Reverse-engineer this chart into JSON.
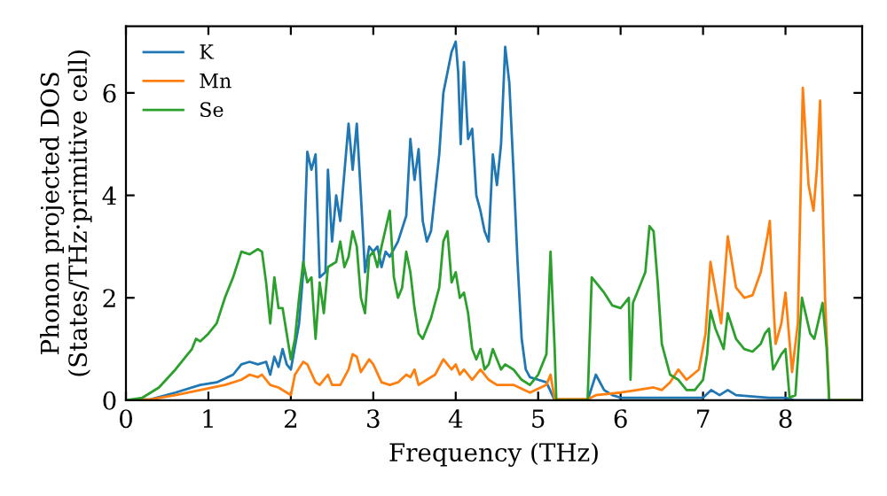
{
  "chart_data": {
    "type": "line",
    "xlabel": "Frequency (THz)",
    "ylabel": "Phonon projected DOS\n(States/THz·primitive cell)",
    "xlim": [
      0,
      8.93
    ],
    "ylim": [
      0,
      7.3
    ],
    "xticks": [
      0,
      1,
      2,
      3,
      4,
      5,
      6,
      7,
      8
    ],
    "yticks": [
      0,
      2,
      4,
      6
    ],
    "legend": "top left",
    "grid": false,
    "marker": "none",
    "line_style": "solid",
    "series": [
      {
        "name": "K",
        "color": "#1f77b4",
        "x": [
          0,
          0.3,
          0.6,
          0.9,
          1.1,
          1.3,
          1.4,
          1.5,
          1.6,
          1.7,
          1.75,
          1.8,
          1.85,
          1.9,
          1.95,
          2.0,
          2.1,
          2.15,
          2.2,
          2.25,
          2.3,
          2.35,
          2.42,
          2.45,
          2.5,
          2.55,
          2.6,
          2.7,
          2.75,
          2.8,
          2.85,
          2.9,
          2.95,
          3.0,
          3.05,
          3.1,
          3.15,
          3.2,
          3.3,
          3.4,
          3.45,
          3.5,
          3.55,
          3.6,
          3.65,
          3.7,
          3.8,
          3.85,
          3.95,
          4.0,
          4.03,
          4.06,
          4.1,
          4.15,
          4.2,
          4.25,
          4.3,
          4.35,
          4.4,
          4.45,
          4.5,
          4.55,
          4.6,
          4.65,
          4.7,
          4.75,
          4.8,
          4.85,
          4.9,
          5.0,
          5.1,
          5.2,
          5.6,
          5.7,
          5.8,
          5.9,
          6.0,
          6.5,
          7.0,
          7.1,
          7.2,
          7.3,
          7.4,
          7.8,
          8.0,
          8.1,
          8.93
        ],
        "values": [
          0,
          0.02,
          0.15,
          0.3,
          0.35,
          0.5,
          0.7,
          0.75,
          0.7,
          0.75,
          0.5,
          0.85,
          0.65,
          1.0,
          0.7,
          0.6,
          1.5,
          2.5,
          4.85,
          4.5,
          4.8,
          2.4,
          2.5,
          4.5,
          3.1,
          4.0,
          3.5,
          5.4,
          4.5,
          5.4,
          4.0,
          2.5,
          3.0,
          2.9,
          3.0,
          2.6,
          2.9,
          2.8,
          3.1,
          3.6,
          5.1,
          4.3,
          4.9,
          3.5,
          3.1,
          3.3,
          4.8,
          6.0,
          6.8,
          7.0,
          6.4,
          5.0,
          6.6,
          5.1,
          5.3,
          4.0,
          3.7,
          3.3,
          3.1,
          4.8,
          4.2,
          5.0,
          6.9,
          6.2,
          4.5,
          2.7,
          1.2,
          0.6,
          0.45,
          0.4,
          0.35,
          0,
          0,
          0.5,
          0.2,
          0.1,
          0.05,
          0.05,
          0.05,
          0.2,
          0.1,
          0.2,
          0.1,
          0.05,
          0.05,
          0,
          0
        ]
      },
      {
        "name": "Mn",
        "color": "#ff7f0e",
        "x": [
          0,
          0.3,
          0.6,
          0.9,
          1.2,
          1.4,
          1.5,
          1.6,
          1.65,
          1.75,
          1.85,
          2.0,
          2.05,
          2.15,
          2.2,
          2.3,
          2.35,
          2.45,
          2.5,
          2.6,
          2.7,
          2.75,
          2.8,
          2.85,
          2.95,
          3.0,
          3.1,
          3.2,
          3.3,
          3.4,
          3.45,
          3.5,
          3.55,
          3.65,
          3.75,
          3.85,
          3.9,
          3.95,
          4.0,
          4.05,
          4.1,
          4.2,
          4.3,
          4.4,
          4.5,
          4.7,
          4.9,
          5.1,
          5.15,
          5.2,
          5.6,
          5.7,
          6.0,
          6.2,
          6.4,
          6.5,
          6.6,
          6.7,
          6.8,
          6.95,
          7.03,
          7.09,
          7.22,
          7.3,
          7.4,
          7.5,
          7.6,
          7.7,
          7.78,
          7.81,
          7.85,
          7.88,
          7.95,
          8.0,
          8.08,
          8.15,
          8.21,
          8.28,
          8.34,
          8.38,
          8.42,
          8.48,
          8.53,
          8.93
        ],
        "values": [
          0,
          0.02,
          0.1,
          0.2,
          0.3,
          0.4,
          0.5,
          0.45,
          0.5,
          0.3,
          0.25,
          0.1,
          0.5,
          0.75,
          0.7,
          0.35,
          0.3,
          0.5,
          0.3,
          0.3,
          0.6,
          0.9,
          0.85,
          0.55,
          0.8,
          0.7,
          0.35,
          0.3,
          0.35,
          0.5,
          0.45,
          0.6,
          0.3,
          0.4,
          0.5,
          0.8,
          0.7,
          0.6,
          0.7,
          0.5,
          0.6,
          0.4,
          0.6,
          0.4,
          0.3,
          0.3,
          0.15,
          0.3,
          0.5,
          0.02,
          0.02,
          0.1,
          0.15,
          0.2,
          0.25,
          0.2,
          0.35,
          0.6,
          0.4,
          0.6,
          1.3,
          2.7,
          1.5,
          3.2,
          2.2,
          2.0,
          2.05,
          2.5,
          3.2,
          3.5,
          2.0,
          1.1,
          1.5,
          2.1,
          0.55,
          1.5,
          6.1,
          4.2,
          3.7,
          4.5,
          5.85,
          2.0,
          0,
          0
        ]
      },
      {
        "name": "Se",
        "color": "#2ca02c",
        "x": [
          0,
          0.2,
          0.4,
          0.6,
          0.8,
          0.85,
          0.9,
          1.0,
          1.1,
          1.2,
          1.3,
          1.4,
          1.5,
          1.6,
          1.65,
          1.7,
          1.75,
          1.8,
          1.85,
          1.9,
          1.95,
          2.0,
          2.05,
          2.1,
          2.15,
          2.2,
          2.25,
          2.3,
          2.35,
          2.4,
          2.45,
          2.55,
          2.6,
          2.65,
          2.7,
          2.75,
          2.8,
          2.85,
          2.9,
          2.95,
          3.0,
          3.05,
          3.1,
          3.2,
          3.25,
          3.3,
          3.35,
          3.4,
          3.45,
          3.5,
          3.55,
          3.6,
          3.7,
          3.8,
          3.85,
          3.9,
          3.95,
          4.0,
          4.05,
          4.1,
          4.15,
          4.2,
          4.25,
          4.3,
          4.35,
          4.4,
          4.45,
          4.5,
          4.55,
          4.6,
          4.7,
          4.8,
          4.9,
          5.0,
          5.1,
          5.15,
          5.2,
          5.22,
          5.6,
          5.65,
          5.75,
          5.8,
          5.9,
          6.0,
          6.05,
          6.1,
          6.12,
          6.15,
          6.2,
          6.3,
          6.35,
          6.4,
          6.45,
          6.5,
          6.6,
          6.7,
          6.8,
          6.9,
          7.0,
          7.05,
          7.09,
          7.15,
          7.25,
          7.3,
          7.4,
          7.5,
          7.6,
          7.7,
          7.75,
          7.8,
          7.85,
          7.95,
          8.0,
          8.05,
          8.12,
          8.2,
          8.3,
          8.35,
          8.45,
          8.5,
          8.53,
          8.93
        ],
        "values": [
          0,
          0.05,
          0.25,
          0.6,
          1.0,
          1.2,
          1.15,
          1.3,
          1.5,
          2.0,
          2.4,
          2.9,
          2.85,
          2.95,
          2.9,
          2.3,
          1.5,
          2.4,
          1.8,
          1.8,
          1.3,
          0.8,
          1.2,
          2.0,
          2.7,
          2.3,
          2.4,
          1.2,
          2.3,
          1.7,
          2.6,
          2.7,
          3.1,
          2.6,
          2.8,
          3.3,
          3.0,
          2.0,
          1.7,
          2.8,
          2.9,
          2.6,
          3.0,
          3.7,
          2.4,
          2.0,
          2.2,
          2.9,
          2.5,
          1.8,
          1.3,
          1.2,
          1.6,
          2.2,
          3.1,
          3.3,
          2.3,
          2.5,
          2.0,
          2.1,
          1.7,
          1.0,
          0.8,
          1.0,
          0.6,
          0.7,
          1.0,
          0.8,
          0.6,
          0.7,
          0.6,
          0.4,
          0.3,
          0.5,
          0.9,
          2.9,
          1.0,
          0,
          0,
          2.4,
          2.2,
          2.1,
          1.85,
          1.8,
          1.9,
          2.0,
          0.4,
          1.9,
          2.1,
          2.5,
          3.4,
          3.3,
          2.3,
          1.1,
          0.5,
          0.4,
          0.2,
          0.2,
          0.4,
          0.9,
          1.75,
          1.4,
          1.0,
          1.7,
          1.2,
          1.0,
          0.95,
          1.1,
          1.3,
          1.4,
          0.6,
          0.9,
          1.0,
          0.05,
          0.1,
          2.0,
          1.3,
          1.2,
          1.9,
          1.0,
          0,
          0
        ]
      }
    ]
  }
}
